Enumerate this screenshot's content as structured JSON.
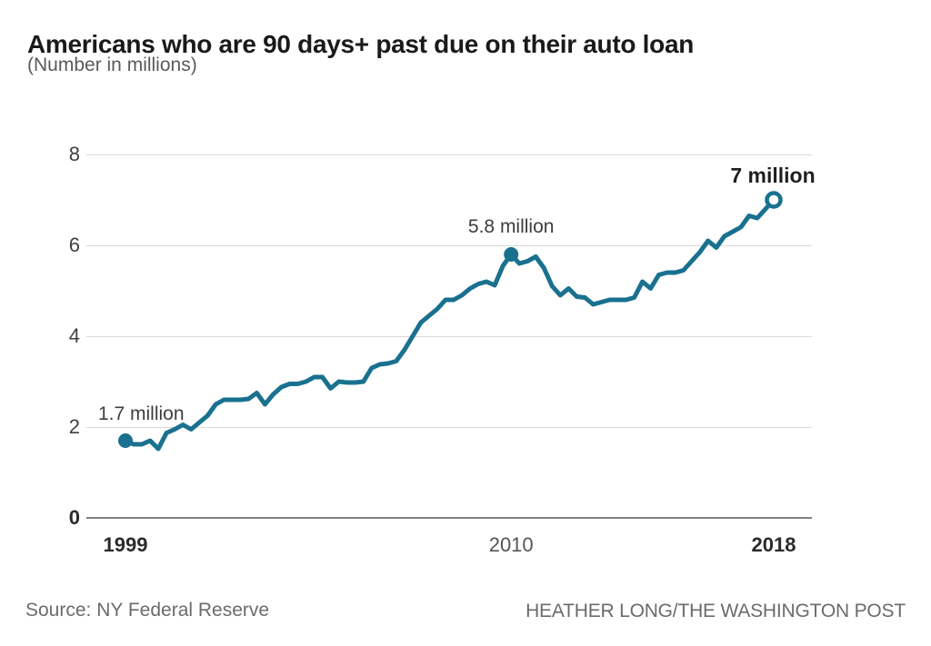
{
  "header": {
    "title": "Americans who are 90 days+ past due on their auto loan",
    "subtitle": "(Number in millions)"
  },
  "chart_data": {
    "type": "line",
    "title": "Americans who are 90 days+ past due on their auto loan",
    "subtitle": "(Number in millions)",
    "unit": "millions of people",
    "frequency": "quarterly",
    "x_start": "1999",
    "x_end": "2018",
    "ylim": [
      0,
      8
    ],
    "y_ticks": [
      8,
      6,
      4,
      2,
      0
    ],
    "grid": "horizontal",
    "legend": "none",
    "line_color": "#19718F",
    "values": [
      1.7,
      1.62,
      1.62,
      1.7,
      1.52,
      1.87,
      1.95,
      2.05,
      1.95,
      2.1,
      2.25,
      2.5,
      2.6,
      2.6,
      2.6,
      2.62,
      2.75,
      2.5,
      2.72,
      2.88,
      2.95,
      2.95,
      3.0,
      3.1,
      3.1,
      2.85,
      3.0,
      2.98,
      2.98,
      3.0,
      3.3,
      3.38,
      3.4,
      3.45,
      3.7,
      4.0,
      4.3,
      4.45,
      4.6,
      4.8,
      4.8,
      4.9,
      5.05,
      5.15,
      5.2,
      5.12,
      5.55,
      5.8,
      5.6,
      5.65,
      5.75,
      5.5,
      5.1,
      4.9,
      5.05,
      4.87,
      4.85,
      4.7,
      4.75,
      4.8,
      4.8,
      4.8,
      4.85,
      5.2,
      5.05,
      5.35,
      5.4,
      5.4,
      5.45,
      5.65,
      5.85,
      6.1,
      5.95,
      6.2,
      6.3,
      6.4,
      6.65,
      6.6,
      6.8,
      7.0
    ],
    "x_tick_labels": [
      {
        "label": "1999",
        "index": 0,
        "bold": true
      },
      {
        "label": "2010",
        "index": 47,
        "bold": false
      },
      {
        "label": "2018",
        "index": 79,
        "bold": true
      }
    ],
    "annotations": [
      {
        "text": "1.7 million",
        "value": 1.7,
        "index": 0,
        "marker": "filled-dot",
        "bold": false
      },
      {
        "text": "5.8 million",
        "value": 5.8,
        "index": 47,
        "marker": "filled-dot",
        "bold": false
      },
      {
        "text": "7 million",
        "value": 7.0,
        "index": 79,
        "marker": "open-dot",
        "bold": true
      }
    ]
  },
  "footer": {
    "source": "Source: NY Federal Reserve",
    "byline": "HEATHER LONG/THE WASHINGTON POST"
  },
  "colors": {
    "line": "#19718F",
    "grid": "#D9D9D9",
    "zero_axis": "#808080",
    "title_text": "#1A1A1A",
    "subtitle_text": "#5A5A5A",
    "tick_text": "#404040",
    "annotation_text": "#3D3D3D",
    "footer_text": "#6B6B6B"
  }
}
